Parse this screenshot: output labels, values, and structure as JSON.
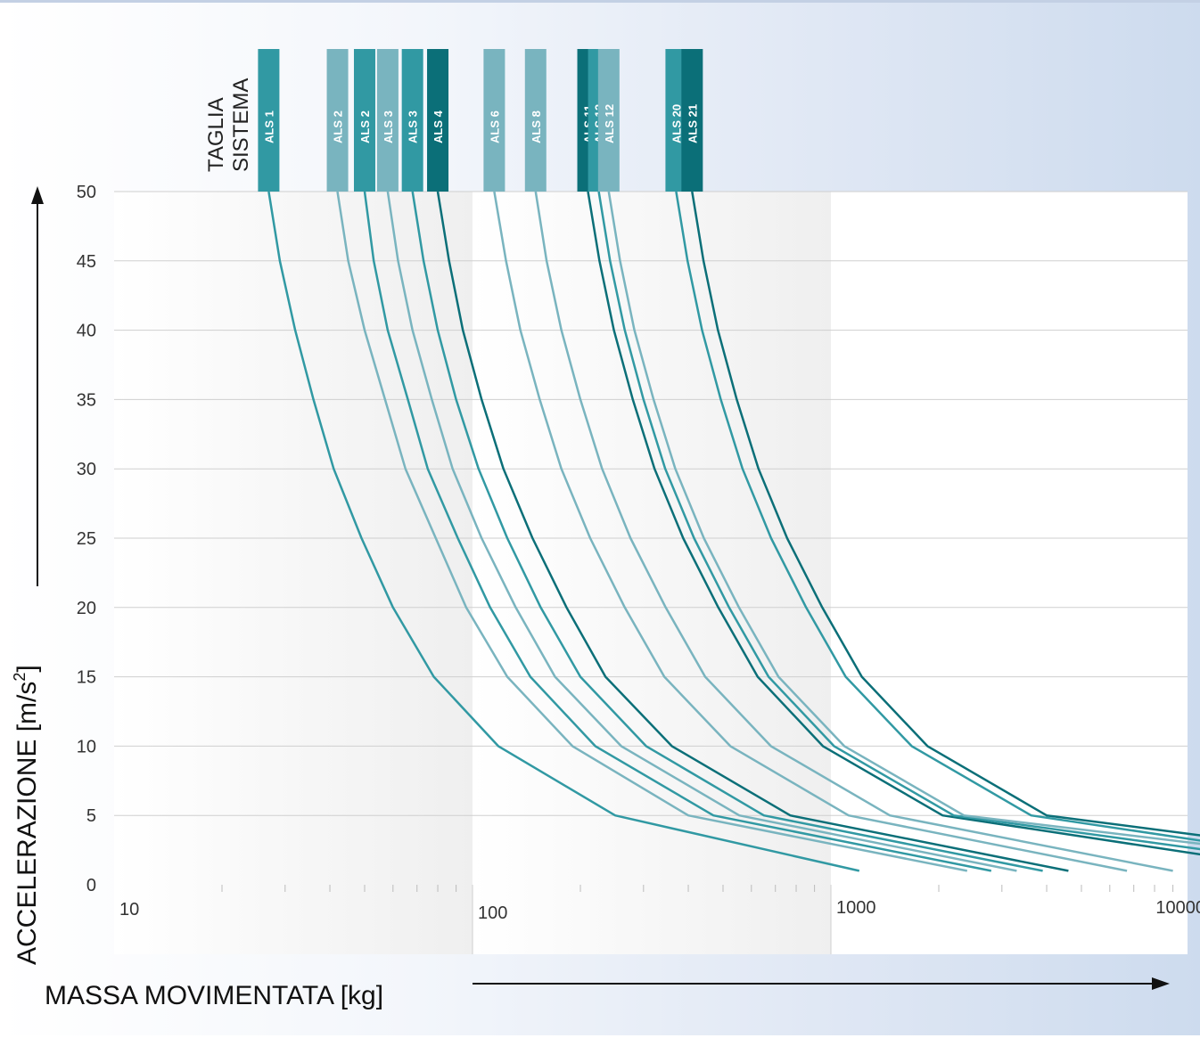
{
  "header": {
    "label_line1": "TAGLIA",
    "label_line2": "SISTEMA"
  },
  "axes": {
    "ylabel_main": "ACCELERAZIONE [m/s",
    "ylabel_sup": "2",
    "ylabel_end": "]",
    "xlabel": "MASSA MOVIMENTATA [kg]"
  },
  "chart_data": {
    "type": "line",
    "title": "",
    "xlabel": "MASSA MOVIMENTATA [kg]",
    "ylabel": "ACCELERAZIONE [m/s²]",
    "x_scale": "log",
    "xlim": [
      10,
      12000
    ],
    "ylim": [
      0,
      50
    ],
    "x_ticks": [
      "10",
      "100",
      "1000",
      "10000"
    ],
    "y_ticks": [
      "0",
      "5",
      "10",
      "15",
      "20",
      "25",
      "30",
      "35",
      "40",
      "45",
      "50"
    ],
    "grid": "horizontal",
    "colors": {
      "dark": "#0b6f78",
      "medium": "#3199a3",
      "light": "#79b4bf"
    },
    "series": [
      {
        "name": "ALS 1",
        "color": "medium",
        "points": [
          [
            27,
            50
          ],
          [
            29,
            45
          ],
          [
            32,
            40
          ],
          [
            36,
            35
          ],
          [
            41,
            30
          ],
          [
            49,
            25
          ],
          [
            60,
            20
          ],
          [
            78,
            15
          ],
          [
            118,
            10
          ],
          [
            250,
            5
          ],
          [
            1200,
            1
          ]
        ]
      },
      {
        "name": "ALS 2",
        "color": "light",
        "points": [
          [
            42,
            50
          ],
          [
            45,
            45
          ],
          [
            50,
            40
          ],
          [
            57,
            35
          ],
          [
            65,
            30
          ],
          [
            79,
            25
          ],
          [
            96,
            20
          ],
          [
            125,
            15
          ],
          [
            190,
            10
          ],
          [
            400,
            5
          ],
          [
            2400,
            1
          ]
        ]
      },
      {
        "name": "ALS 2",
        "color": "medium",
        "points": [
          [
            50,
            50
          ],
          [
            53,
            45
          ],
          [
            58,
            40
          ],
          [
            66,
            35
          ],
          [
            75,
            30
          ],
          [
            91,
            25
          ],
          [
            112,
            20
          ],
          [
            145,
            15
          ],
          [
            220,
            10
          ],
          [
            470,
            5
          ],
          [
            2800,
            1
          ]
        ]
      },
      {
        "name": "ALS 3",
        "color": "light",
        "points": [
          [
            58,
            50
          ],
          [
            62,
            45
          ],
          [
            68,
            40
          ],
          [
            77,
            35
          ],
          [
            88,
            30
          ],
          [
            106,
            25
          ],
          [
            132,
            20
          ],
          [
            170,
            15
          ],
          [
            260,
            10
          ],
          [
            555,
            5
          ],
          [
            3300,
            1
          ]
        ]
      },
      {
        "name": "ALS 3",
        "color": "medium",
        "points": [
          [
            68,
            50
          ],
          [
            73,
            45
          ],
          [
            80,
            40
          ],
          [
            90,
            35
          ],
          [
            104,
            30
          ],
          [
            125,
            25
          ],
          [
            155,
            20
          ],
          [
            200,
            15
          ],
          [
            305,
            10
          ],
          [
            650,
            5
          ],
          [
            3900,
            1
          ]
        ]
      },
      {
        "name": "ALS 4",
        "color": "dark",
        "points": [
          [
            80,
            50
          ],
          [
            86,
            45
          ],
          [
            94,
            40
          ],
          [
            106,
            35
          ],
          [
            122,
            30
          ],
          [
            147,
            25
          ],
          [
            183,
            20
          ],
          [
            235,
            15
          ],
          [
            360,
            10
          ],
          [
            770,
            5
          ],
          [
            4600,
            1
          ]
        ]
      },
      {
        "name": "ALS 6",
        "color": "light",
        "points": [
          [
            115,
            50
          ],
          [
            124,
            45
          ],
          [
            136,
            40
          ],
          [
            154,
            35
          ],
          [
            177,
            30
          ],
          [
            213,
            25
          ],
          [
            266,
            20
          ],
          [
            343,
            15
          ],
          [
            524,
            10
          ],
          [
            1120,
            5
          ],
          [
            6700,
            1
          ]
        ]
      },
      {
        "name": "ALS 8",
        "color": "light",
        "points": [
          [
            150,
            50
          ],
          [
            161,
            45
          ],
          [
            177,
            40
          ],
          [
            200,
            35
          ],
          [
            230,
            30
          ],
          [
            276,
            25
          ],
          [
            346,
            20
          ],
          [
            446,
            15
          ],
          [
            680,
            10
          ],
          [
            1460,
            5
          ],
          [
            9000,
            1
          ]
        ]
      },
      {
        "name": "ALS 11",
        "color": "dark",
        "points": [
          [
            210,
            50
          ],
          [
            226,
            45
          ],
          [
            248,
            40
          ],
          [
            280,
            35
          ],
          [
            322,
            30
          ],
          [
            387,
            25
          ],
          [
            485,
            20
          ],
          [
            625,
            15
          ],
          [
            950,
            10
          ],
          [
            2050,
            5
          ],
          [
            12000,
            2
          ]
        ]
      },
      {
        "name": "ALS 12",
        "color": "medium",
        "points": [
          [
            225,
            50
          ],
          [
            242,
            45
          ],
          [
            266,
            40
          ],
          [
            300,
            35
          ],
          [
            345,
            30
          ],
          [
            415,
            25
          ],
          [
            520,
            20
          ],
          [
            670,
            15
          ],
          [
            1020,
            10
          ],
          [
            2200,
            5
          ],
          [
            12000,
            2.4
          ]
        ]
      },
      {
        "name": "ALS 12",
        "color": "light",
        "points": [
          [
            240,
            50
          ],
          [
            258,
            45
          ],
          [
            283,
            40
          ],
          [
            320,
            35
          ],
          [
            368,
            30
          ],
          [
            442,
            25
          ],
          [
            554,
            20
          ],
          [
            714,
            15
          ],
          [
            1090,
            10
          ],
          [
            2350,
            5
          ],
          [
            12000,
            2.8
          ]
        ]
      },
      {
        "name": "ALS 20",
        "color": "medium",
        "points": [
          [
            370,
            50
          ],
          [
            398,
            45
          ],
          [
            437,
            40
          ],
          [
            493,
            35
          ],
          [
            567,
            30
          ],
          [
            681,
            25
          ],
          [
            853,
            20
          ],
          [
            1100,
            15
          ],
          [
            1680,
            10
          ],
          [
            3620,
            5
          ],
          [
            12000,
            3
          ]
        ]
      },
      {
        "name": "ALS 21",
        "color": "dark",
        "points": [
          [
            410,
            50
          ],
          [
            441,
            45
          ],
          [
            484,
            40
          ],
          [
            546,
            35
          ],
          [
            628,
            30
          ],
          [
            755,
            25
          ],
          [
            946,
            20
          ],
          [
            1220,
            15
          ],
          [
            1860,
            10
          ],
          [
            4000,
            5
          ],
          [
            12000,
            3.4
          ]
        ]
      }
    ]
  }
}
